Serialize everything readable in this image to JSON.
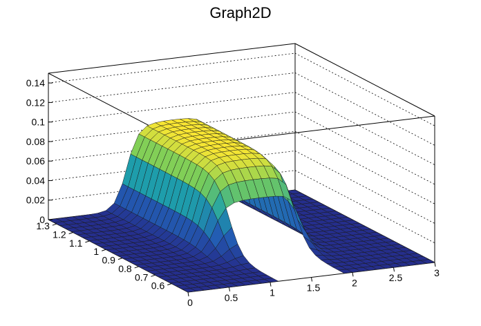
{
  "chart_data": {
    "type": "surface3d",
    "title": "Graph2D",
    "xlabel": "",
    "ylabel": "",
    "zlabel": "",
    "xlim": [
      0,
      3
    ],
    "ylim": [
      0.5,
      1.35
    ],
    "zlim": [
      0,
      0.15
    ],
    "x_ticks": [
      "0",
      "0.5",
      "1",
      "1.5",
      "2",
      "2.5",
      "3"
    ],
    "y_ticks": [
      "0.6",
      "0.7",
      "0.8",
      "0.9",
      "1",
      "1.1",
      "1.2",
      "1.3"
    ],
    "z_ticks": [
      "0",
      "0.02",
      "0.04",
      "0.06",
      "0.08",
      "0.1",
      "0.12",
      "0.14"
    ],
    "colormap": "viridis-like (blue to yellow)",
    "description_values": {
      "peak_z": 0.087,
      "plateau_x_range": [
        0.9,
        2.0
      ],
      "plateau_y_range": [
        0.8,
        1.35
      ],
      "baseline_z": 0.0
    }
  },
  "colors": {
    "low": "#2b3f8f",
    "mid": "#2aa5a8",
    "high": "#f4e23a"
  }
}
